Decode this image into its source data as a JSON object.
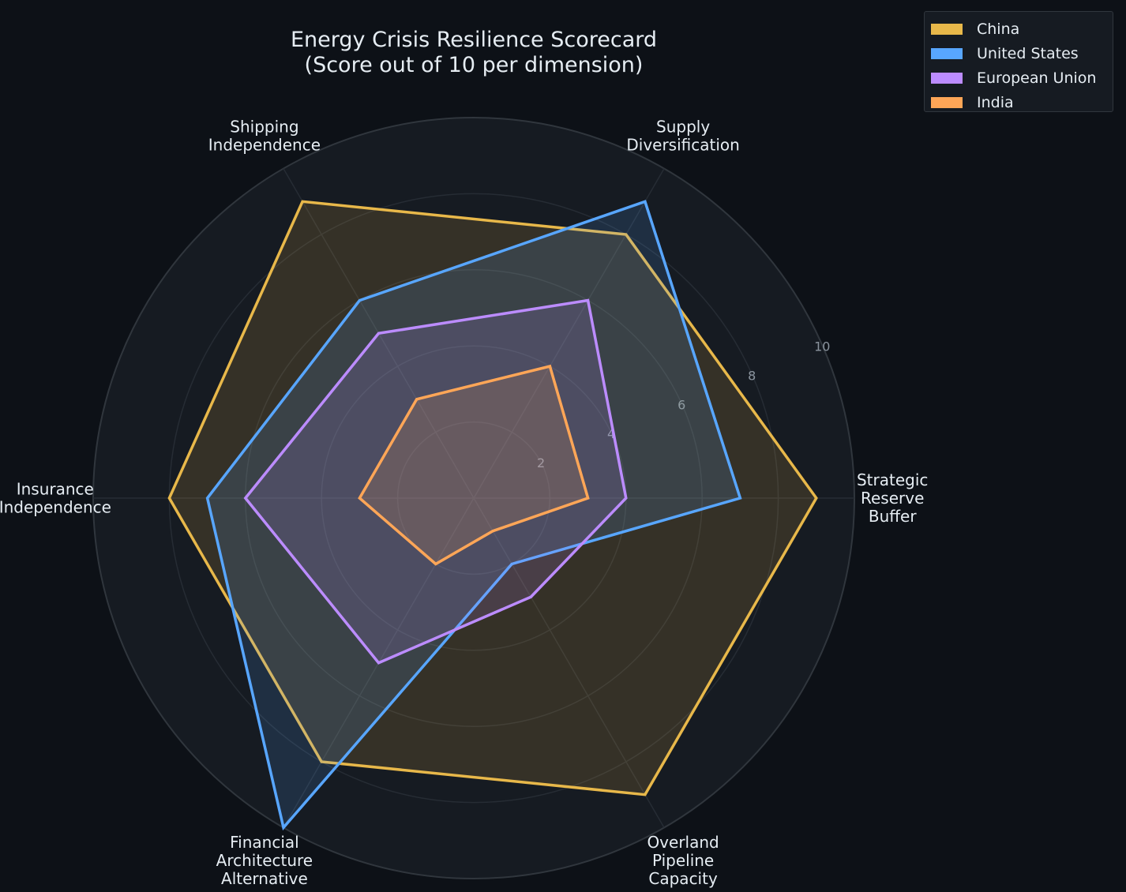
{
  "chart_data": {
    "type": "radar",
    "title": "Energy Crisis Resilience Scorecard",
    "subtitle": "(Score out of 10 per dimension)",
    "categories": [
      "Strategic\nReserve\nBuffer",
      "Supply\nDiversification",
      "Shipping\nIndependence",
      "Insurance\nIndependence",
      "Financial\nArchitecture\nAlternative",
      "Overland\nPipeline\nCapacity"
    ],
    "rlim": [
      0,
      10
    ],
    "rticks": [
      "2",
      "4",
      "6",
      "8",
      "10"
    ],
    "grid": true,
    "legend_position": "top-right",
    "series": [
      {
        "name": "China",
        "color": "#e8b84a",
        "values": [
          9,
          8,
          9,
          8,
          8,
          9
        ]
      },
      {
        "name": "United States",
        "color": "#58a6ff",
        "values": [
          7,
          9,
          6,
          7,
          10,
          2
        ]
      },
      {
        "name": "European Union",
        "color": "#bc8cff",
        "values": [
          4,
          6,
          5,
          6,
          5,
          3
        ]
      },
      {
        "name": "India",
        "color": "#ffa657",
        "values": [
          3,
          4,
          3,
          3,
          2,
          1
        ]
      }
    ]
  }
}
